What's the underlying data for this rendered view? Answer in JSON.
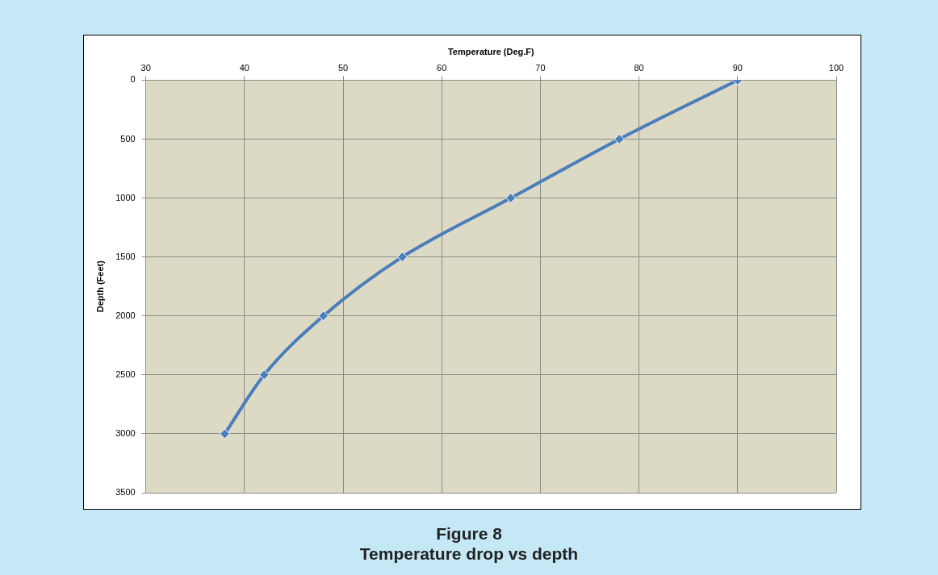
{
  "chart_data": {
    "type": "line",
    "title": "Figure 8",
    "subtitle": "Temperature drop vs depth",
    "xlabel": "Temperature (Deg.F)",
    "ylabel": "Depth (Feet)",
    "xlim": [
      30,
      100
    ],
    "xticks": [
      30,
      40,
      50,
      60,
      70,
      80,
      90,
      100
    ],
    "ylim": [
      3500,
      0
    ],
    "yticks": [
      0,
      500,
      1000,
      1500,
      2000,
      2500,
      3000,
      3500
    ],
    "series": [
      {
        "color": "#4a7ebb",
        "x": [
          90,
          78,
          67,
          56,
          48,
          42,
          38
        ],
        "values": [
          0,
          500,
          1000,
          1500,
          2000,
          2500,
          3000
        ]
      }
    ],
    "grid": true,
    "legend": false,
    "marker": "diamond",
    "line_style": "solid"
  }
}
